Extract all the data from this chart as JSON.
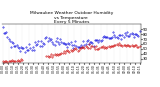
{
  "title": "Milwaukee Weather Outdoor Humidity\nvs Temperature\nEvery 5 Minutes",
  "title_fontsize": 3.2,
  "blue_color": "#0000dd",
  "red_color": "#cc0000",
  "background_color": "#ffffff",
  "grid_color": "#bbbbbb",
  "ylim": [
    22,
    100
  ],
  "yticks": [
    30,
    40,
    50,
    60,
    70,
    80,
    90
  ],
  "ylabel_fontsize": 2.8,
  "xlabel_fontsize": 2.2,
  "num_points": 120,
  "figwidth": 1.6,
  "figheight": 0.87,
  "dpi": 100
}
